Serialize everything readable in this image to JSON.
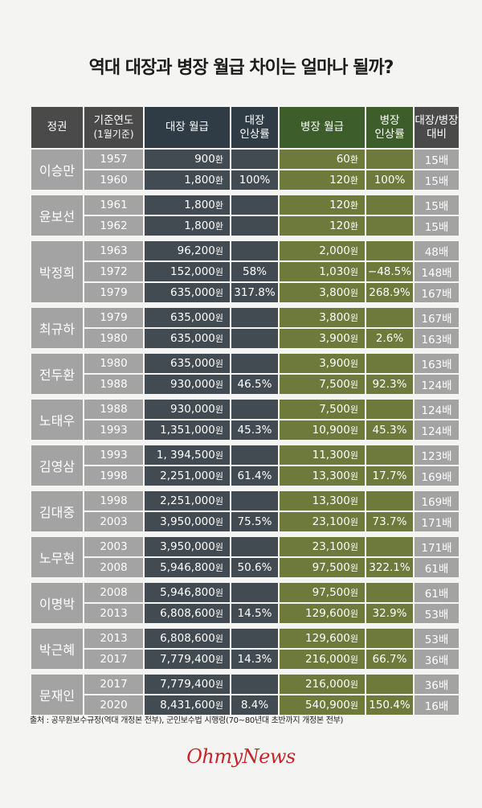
{
  "title": "역대 대장과 병장 월급 차이는 얼마나 될까?",
  "headers": {
    "gov": "정권",
    "year_line1": "기준연도",
    "year_line2": "(1월기준)",
    "general_salary": "대장 월급",
    "general_rate_line1": "대장",
    "general_rate_line2": "인상률",
    "private_salary": "병장 월급",
    "private_rate_line1": "병장",
    "private_rate_line2": "인상률",
    "ratio_line1": "대장/병장",
    "ratio_line2": "대비"
  },
  "groups": [
    {
      "gov": "이승만",
      "rows": [
        {
          "year": "1957",
          "gsal": "900",
          "gunit": "환",
          "grate": "",
          "psal": "60",
          "punit": "환",
          "prate": "",
          "ratio": "15배"
        },
        {
          "year": "1960",
          "gsal": "1,800",
          "gunit": "환",
          "grate": "100%",
          "psal": "120",
          "punit": "환",
          "prate": "100%",
          "ratio": "15배"
        }
      ]
    },
    {
      "gov": "윤보선",
      "rows": [
        {
          "year": "1961",
          "gsal": "1,800",
          "gunit": "환",
          "grate": "",
          "psal": "120",
          "punit": "환",
          "prate": "",
          "ratio": "15배"
        },
        {
          "year": "1962",
          "gsal": "1,800",
          "gunit": "환",
          "grate": "",
          "psal": "120",
          "punit": "환",
          "prate": "",
          "ratio": "15배"
        }
      ]
    },
    {
      "gov": "박정희",
      "rows": [
        {
          "year": "1963",
          "gsal": "96,200",
          "gunit": "원",
          "grate": "",
          "psal": "2,000",
          "punit": "원",
          "prate": "",
          "ratio": "48배"
        },
        {
          "year": "1972",
          "gsal": "152,000",
          "gunit": "원",
          "grate": "58%",
          "psal": "1,030",
          "punit": "원",
          "prate": "−48.5%",
          "ratio": "148배"
        },
        {
          "year": "1979",
          "gsal": "635,000",
          "gunit": "원",
          "grate": "317.8%",
          "psal": "3,800",
          "punit": "원",
          "prate": "268.9%",
          "ratio": "167배"
        }
      ]
    },
    {
      "gov": "최규하",
      "rows": [
        {
          "year": "1979",
          "gsal": "635,000",
          "gunit": "원",
          "grate": "",
          "psal": "3,800",
          "punit": "원",
          "prate": "",
          "ratio": "167배"
        },
        {
          "year": "1980",
          "gsal": "635,000",
          "gunit": "원",
          "grate": "",
          "psal": "3,900",
          "punit": "원",
          "prate": "2.6%",
          "ratio": "163배"
        }
      ]
    },
    {
      "gov": "전두환",
      "rows": [
        {
          "year": "1980",
          "gsal": "635,000",
          "gunit": "원",
          "grate": "",
          "psal": "3,900",
          "punit": "원",
          "prate": "",
          "ratio": "163배"
        },
        {
          "year": "1988",
          "gsal": "930,000",
          "gunit": "원",
          "grate": "46.5%",
          "psal": "7,500",
          "punit": "원",
          "prate": "92.3%",
          "ratio": "124배"
        }
      ]
    },
    {
      "gov": "노태우",
      "rows": [
        {
          "year": "1988",
          "gsal": "930,000",
          "gunit": "원",
          "grate": "",
          "psal": "7,500",
          "punit": "원",
          "prate": "",
          "ratio": "124배"
        },
        {
          "year": "1993",
          "gsal": "1,351,000",
          "gunit": "원",
          "grate": "45.3%",
          "psal": "10,900",
          "punit": "원",
          "prate": "45.3%",
          "ratio": "124배"
        }
      ]
    },
    {
      "gov": "김영삼",
      "rows": [
        {
          "year": "1993",
          "gsal": "1, 394,500",
          "gunit": "원",
          "grate": "",
          "psal": "11,300",
          "punit": "원",
          "prate": "",
          "ratio": "123배"
        },
        {
          "year": "1998",
          "gsal": "2,251,000",
          "gunit": "원",
          "grate": "61.4%",
          "psal": "13,300",
          "punit": "원",
          "prate": "17.7%",
          "ratio": "169배"
        }
      ]
    },
    {
      "gov": "김대중",
      "rows": [
        {
          "year": "1998",
          "gsal": "2,251,000",
          "gunit": "원",
          "grate": "",
          "psal": "13,300",
          "punit": "원",
          "prate": "",
          "ratio": "169배"
        },
        {
          "year": "2003",
          "gsal": "3,950,000",
          "gunit": "원",
          "grate": "75.5%",
          "psal": "23,100",
          "punit": "원",
          "prate": "73.7%",
          "ratio": "171배"
        }
      ]
    },
    {
      "gov": "노무현",
      "rows": [
        {
          "year": "2003",
          "gsal": "3,950,000",
          "gunit": "원",
          "grate": "",
          "psal": "23,100",
          "punit": "원",
          "prate": "",
          "ratio": "171배"
        },
        {
          "year": "2008",
          "gsal": "5,946,800",
          "gunit": "원",
          "grate": "50.6%",
          "psal": "97,500",
          "punit": "원",
          "prate": "322.1%",
          "ratio": "61배"
        }
      ]
    },
    {
      "gov": "이명박",
      "rows": [
        {
          "year": "2008",
          "gsal": "5,946,800",
          "gunit": "원",
          "grate": "",
          "psal": "97,500",
          "punit": "원",
          "prate": "",
          "ratio": "61배"
        },
        {
          "year": "2013",
          "gsal": "6,808,600",
          "gunit": "원",
          "grate": "14.5%",
          "psal": "129,600",
          "punit": "원",
          "prate": "32.9%",
          "ratio": "53배"
        }
      ]
    },
    {
      "gov": "박근혜",
      "rows": [
        {
          "year": "2013",
          "gsal": "6,808,600",
          "gunit": "원",
          "grate": "",
          "psal": "129,600",
          "punit": "원",
          "prate": "",
          "ratio": "53배"
        },
        {
          "year": "2017",
          "gsal": "7,779,400",
          "gunit": "원",
          "grate": "14.3%",
          "psal": "216,000",
          "punit": "원",
          "prate": "66.7%",
          "ratio": "36배"
        }
      ]
    },
    {
      "gov": "문재인",
      "rows": [
        {
          "year": "2017",
          "gsal": "7,779,400",
          "gunit": "원",
          "grate": "",
          "psal": "216,000",
          "punit": "원",
          "prate": "",
          "ratio": "36배"
        },
        {
          "year": "2020",
          "gsal": "8,431,600",
          "gunit": "원",
          "grate": "8.4%",
          "psal": "540,900",
          "punit": "원",
          "prate": "150.4%",
          "ratio": "16배"
        }
      ]
    }
  ],
  "source": "출처 : 공무원보수규정(역대 개정본 전부), 군인보수법 시행령(70~80년대 초반까지 개정본 전부)",
  "logo": "OhmyNews"
}
